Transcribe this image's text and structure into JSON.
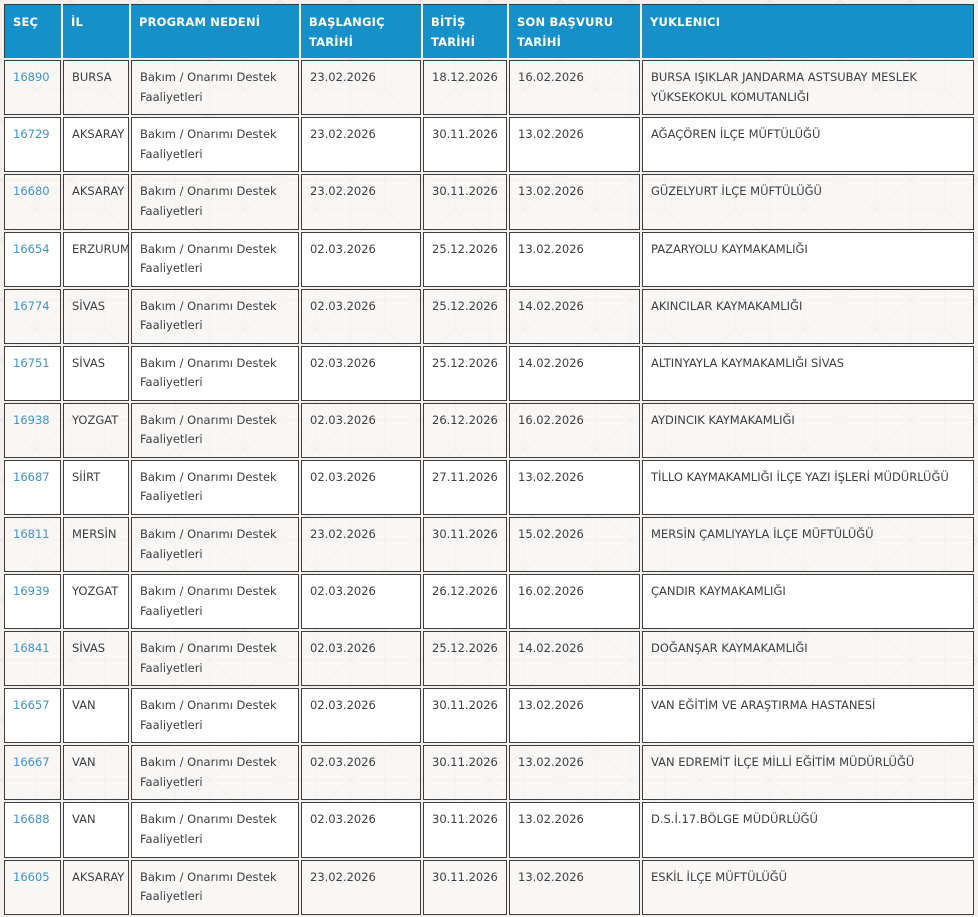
{
  "colors": {
    "header_bg": "#1590c8",
    "header_text": "#ffffff",
    "cell_border": "#3e3e3e",
    "cell_text": "#3e3e3e",
    "link_blue": "#4292c8",
    "page_bg": "#f3f0ee",
    "pattern_line": "#e9e3df"
  },
  "table": {
    "columns": [
      {
        "key": "sec",
        "label": "SEÇ"
      },
      {
        "key": "il",
        "label": "İL"
      },
      {
        "key": "program",
        "label": "PROGRAM NEDENİ"
      },
      {
        "key": "baslangic",
        "label": "BAŞLANGIÇ TARİHİ"
      },
      {
        "key": "bitis",
        "label": "BİTİŞ TARİHİ"
      },
      {
        "key": "sonbasvuru",
        "label": "SON BAŞVURU TARİHİ"
      },
      {
        "key": "yuklenici",
        "label": "YUKLENICI"
      }
    ],
    "rows": [
      {
        "sec": "16890",
        "il": "BURSA",
        "program": "Bakım / Onarımı Destek Faaliyetleri",
        "baslangic": "23.02.2026",
        "bitis": "18.12.2026",
        "sonbasvuru": "16.02.2026",
        "yuklenici": "BURSA IŞIKLAR JANDARMA ASTSUBAY MESLEK YÜKSEKOKUL KOMUTANLIĞI"
      },
      {
        "sec": "16729",
        "il": "AKSARAY",
        "program": "Bakım / Onarımı Destek Faaliyetleri",
        "baslangic": "23.02.2026",
        "bitis": "30.11.2026",
        "sonbasvuru": "13.02.2026",
        "yuklenici": "AĞAÇÖREN İLÇE MÜFTÜLÜĞÜ"
      },
      {
        "sec": "16680",
        "il": "AKSARAY",
        "program": "Bakım / Onarımı Destek Faaliyetleri",
        "baslangic": "23.02.2026",
        "bitis": "30.11.2026",
        "sonbasvuru": "13.02.2026",
        "yuklenici": "GÜZELYURT İLÇE MÜFTÜLÜĞÜ"
      },
      {
        "sec": "16654",
        "il": "ERZURUM",
        "program": "Bakım / Onarımı Destek Faaliyetleri",
        "baslangic": "02.03.2026",
        "bitis": "25.12.2026",
        "sonbasvuru": "13.02.2026",
        "yuklenici": "PAZARYOLU KAYMAKAMLIĞI"
      },
      {
        "sec": "16774",
        "il": "SİVAS",
        "program": "Bakım / Onarımı Destek Faaliyetleri",
        "baslangic": "02.03.2026",
        "bitis": "25.12.2026",
        "sonbasvuru": "14.02.2026",
        "yuklenici": "AKINCILAR KAYMAKAMLIĞI"
      },
      {
        "sec": "16751",
        "il": "SİVAS",
        "program": "Bakım / Onarımı Destek Faaliyetleri",
        "baslangic": "02.03.2026",
        "bitis": "25.12.2026",
        "sonbasvuru": "14.02.2026",
        "yuklenici": "ALTINYAYLA KAYMAKAMLIĞI SİVAS"
      },
      {
        "sec": "16938",
        "il": "YOZGAT",
        "program": "Bakım / Onarımı Destek Faaliyetleri",
        "baslangic": "02.03.2026",
        "bitis": "26.12.2026",
        "sonbasvuru": "16.02.2026",
        "yuklenici": "AYDINCIK KAYMAKAMLIĞI"
      },
      {
        "sec": "16687",
        "il": "SİİRT",
        "program": "Bakım / Onarımı Destek Faaliyetleri",
        "baslangic": "02.03.2026",
        "bitis": "27.11.2026",
        "sonbasvuru": "13.02.2026",
        "yuklenici": "TİLLO KAYMAKAMLIĞI İLÇE YAZI İŞLERİ MÜDÜRLÜĞÜ"
      },
      {
        "sec": "16811",
        "il": "MERSİN",
        "program": "Bakım / Onarımı Destek Faaliyetleri",
        "baslangic": "23.02.2026",
        "bitis": "30.11.2026",
        "sonbasvuru": "15.02.2026",
        "yuklenici": "MERSİN ÇAMLIYAYLA İLÇE MÜFTÜLÜĞÜ"
      },
      {
        "sec": "16939",
        "il": "YOZGAT",
        "program": "Bakım / Onarımı Destek Faaliyetleri",
        "baslangic": "02.03.2026",
        "bitis": "26.12.2026",
        "sonbasvuru": "16.02.2026",
        "yuklenici": "ÇANDIR KAYMAKAMLIĞI"
      },
      {
        "sec": "16841",
        "il": "SİVAS",
        "program": "Bakım / Onarımı Destek Faaliyetleri",
        "baslangic": "02.03.2026",
        "bitis": "25.12.2026",
        "sonbasvuru": "14.02.2026",
        "yuklenici": "DOĞANŞAR KAYMAKAMLIĞI"
      },
      {
        "sec": "16657",
        "il": "VAN",
        "program": "Bakım / Onarımı Destek Faaliyetleri",
        "baslangic": "02.03.2026",
        "bitis": "30.11.2026",
        "sonbasvuru": "13.02.2026",
        "yuklenici": "VAN EĞİTİM VE ARAŞTIRMA HASTANESİ"
      },
      {
        "sec": "16667",
        "il": "VAN",
        "program": "Bakım / Onarımı Destek Faaliyetleri",
        "baslangic": "02.03.2026",
        "bitis": "30.11.2026",
        "sonbasvuru": "13.02.2026",
        "yuklenici": "VAN EDREMİT İLÇE MİLLİ EĞİTİM MÜDÜRLÜĞÜ"
      },
      {
        "sec": "16688",
        "il": "VAN",
        "program": "Bakım / Onarımı Destek Faaliyetleri",
        "baslangic": "02.03.2026",
        "bitis": "30.11.2026",
        "sonbasvuru": "13.02.2026",
        "yuklenici": "D.S.İ.17.BÖLGE MÜDÜRLÜĞÜ"
      },
      {
        "sec": "16605",
        "il": "AKSARAY",
        "program": "Bakım / Onarımı Destek Faaliyetleri",
        "baslangic": "23.02.2026",
        "bitis": "30.11.2026",
        "sonbasvuru": "13.02.2026",
        "yuklenici": "ESKİL İLÇE MÜFTÜLÜĞÜ"
      }
    ]
  }
}
